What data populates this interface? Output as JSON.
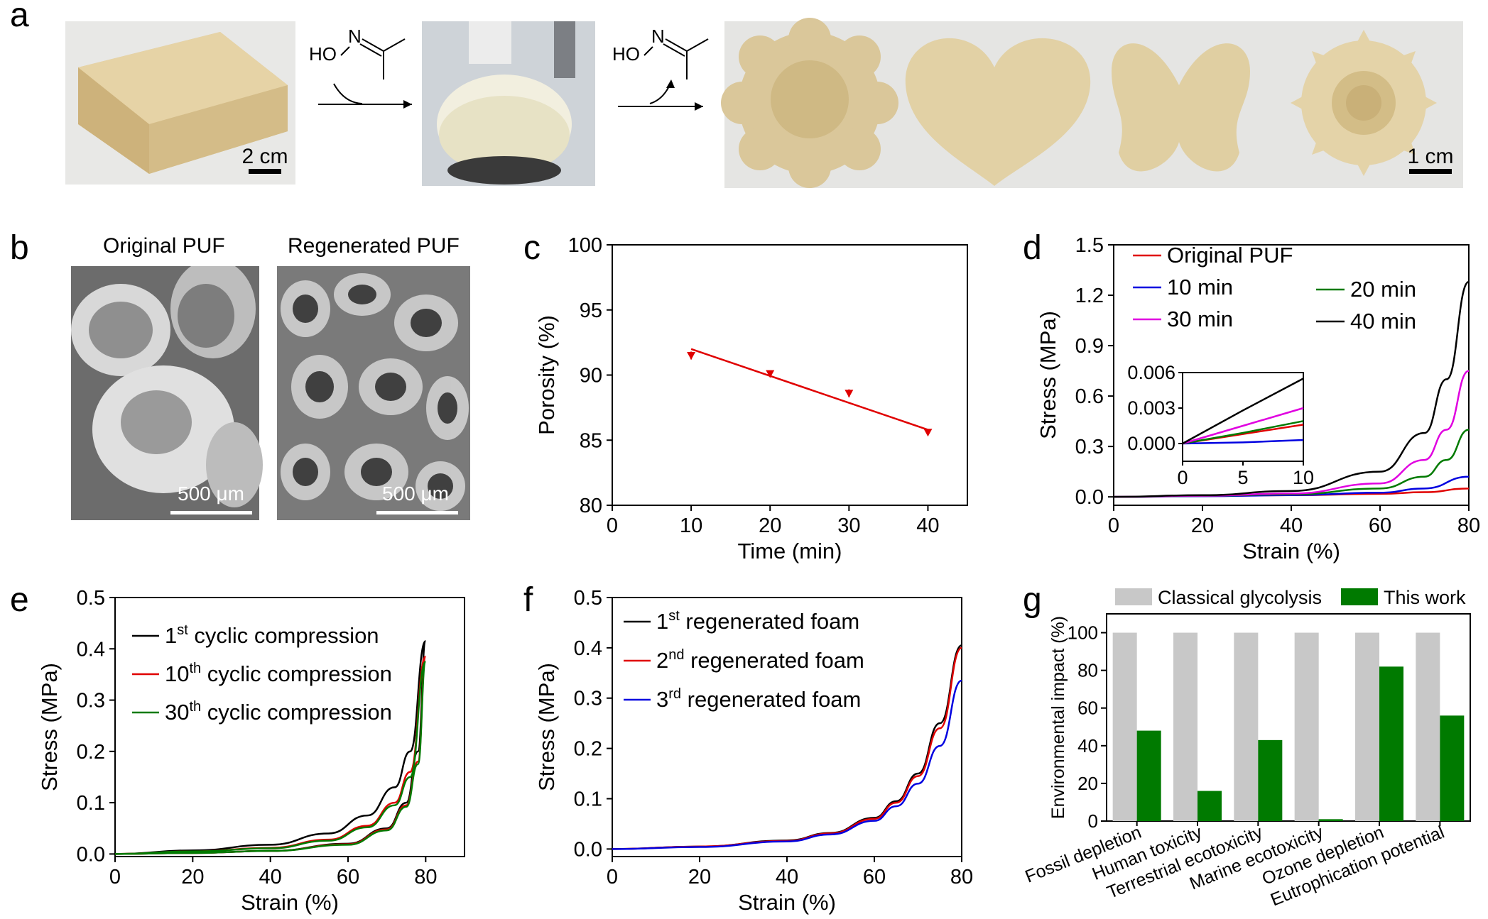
{
  "panel_labels": {
    "a": "a",
    "b": "b",
    "c": "c",
    "d": "d",
    "e": "e",
    "f": "f",
    "g": "g"
  },
  "panel_a": {
    "scale_left": "2 cm",
    "scale_right": "1 cm",
    "reagent_label": "HO",
    "reagent_n": "N",
    "shapes": [
      "flower",
      "heart",
      "butterfly",
      "sunflower"
    ],
    "colors": {
      "foam": "#e3d2a8",
      "foam_dark": "#c9b283",
      "background": "#e6e6e4"
    }
  },
  "panel_b": {
    "left_title": "Original PUF",
    "right_title": "Regenerated PUF",
    "left_scale": "500 μm",
    "right_scale": "500 μm"
  },
  "chart_data": [
    {
      "panel": "c",
      "type": "scatter",
      "xlabel": "Time (min)",
      "ylabel": "Porosity (%)",
      "xlim": [
        0,
        45
      ],
      "ylim": [
        80,
        100
      ],
      "xticks": [
        0,
        10,
        20,
        30,
        40
      ],
      "yticks": [
        80,
        85,
        90,
        95,
        100
      ],
      "points": [
        {
          "x": 10,
          "y": 91.5,
          "err": 0.3
        },
        {
          "x": 20,
          "y": 90.1,
          "err": 0.2
        },
        {
          "x": 30,
          "y": 88.6,
          "err": 0.3
        },
        {
          "x": 40,
          "y": 85.6,
          "err": 0.2
        }
      ],
      "fit_line": {
        "x": [
          10,
          40
        ],
        "y": [
          92.0,
          85.8
        ]
      },
      "color": "#e00000"
    },
    {
      "panel": "d",
      "type": "line",
      "xlabel": "Strain (%)",
      "ylabel": "Stress (MPa)",
      "xlim": [
        0,
        80
      ],
      "ylim": [
        -0.05,
        1.5
      ],
      "xticks": [
        0,
        20,
        40,
        60,
        80
      ],
      "yticks": [
        "0.0",
        "0.3",
        "0.6",
        "0.9",
        "1.2",
        "1.5"
      ],
      "series": [
        {
          "name": "Original PUF",
          "color": "#e00000",
          "x": [
            0,
            20,
            40,
            60,
            70,
            80
          ],
          "y": [
            0,
            0.005,
            0.01,
            0.018,
            0.028,
            0.05
          ]
        },
        {
          "name": "10 min",
          "color": "#0000e0",
          "x": [
            0,
            20,
            40,
            60,
            70,
            80
          ],
          "y": [
            0,
            0.004,
            0.01,
            0.025,
            0.05,
            0.12
          ]
        },
        {
          "name": "20 min",
          "color": "#007a00",
          "x": [
            0,
            20,
            40,
            60,
            70,
            75,
            80
          ],
          "y": [
            0,
            0.006,
            0.015,
            0.05,
            0.12,
            0.22,
            0.4
          ]
        },
        {
          "name": "30 min",
          "color": "#e000e0",
          "x": [
            0,
            20,
            40,
            60,
            70,
            75,
            80
          ],
          "y": [
            0,
            0.007,
            0.02,
            0.08,
            0.22,
            0.4,
            0.75
          ]
        },
        {
          "name": "40 min",
          "color": "#000000",
          "x": [
            0,
            20,
            40,
            60,
            70,
            75,
            80
          ],
          "y": [
            0,
            0.01,
            0.035,
            0.15,
            0.38,
            0.7,
            1.28
          ]
        }
      ],
      "inset": {
        "xlim": [
          0,
          10
        ],
        "ylim": [
          -0.0015,
          0.006
        ],
        "xticks": [
          0,
          5,
          10
        ],
        "yticks": [
          "0.000",
          "0.003",
          "0.006"
        ],
        "series": [
          {
            "name": "Original PUF",
            "color": "#e00000",
            "x": [
              0,
              5,
              10
            ],
            "y": [
              0,
              0.0008,
              0.0016
            ]
          },
          {
            "name": "10 min",
            "color": "#0000e0",
            "x": [
              0,
              5,
              10
            ],
            "y": [
              0,
              0.0001,
              0.0003
            ]
          },
          {
            "name": "20 min",
            "color": "#007a00",
            "x": [
              0,
              5,
              10
            ],
            "y": [
              0,
              0.0009,
              0.0019
            ]
          },
          {
            "name": "30 min",
            "color": "#e000e0",
            "x": [
              0,
              5,
              10
            ],
            "y": [
              0,
              0.0015,
              0.003
            ]
          },
          {
            "name": "40 min",
            "color": "#000000",
            "x": [
              0,
              5,
              10
            ],
            "y": [
              0,
              0.0028,
              0.0055
            ]
          }
        ]
      }
    },
    {
      "panel": "e",
      "type": "line",
      "xlabel": "Strain (%)",
      "ylabel": "Stress (MPa)",
      "xlim": [
        0,
        90
      ],
      "ylim": [
        -0.005,
        0.5
      ],
      "xticks": [
        0,
        20,
        40,
        60,
        80
      ],
      "yticks": [
        "0.0",
        "0.1",
        "0.2",
        "0.3",
        "0.4",
        "0.5"
      ],
      "series": [
        {
          "name": "1st cyclic compression",
          "sup": "st",
          "base": "1",
          "rest": " cyclic compression",
          "color": "#000000",
          "x": [
            0,
            20,
            40,
            55,
            65,
            72,
            76,
            80,
            78,
            75,
            70,
            60,
            40,
            20,
            0
          ],
          "y": [
            0,
            0.007,
            0.018,
            0.04,
            0.075,
            0.13,
            0.2,
            0.415,
            0.2,
            0.1,
            0.05,
            0.02,
            0.006,
            0.002,
            0
          ]
        },
        {
          "name": "10th cyclic compression",
          "sup": "th",
          "base": "10",
          "rest": " cyclic compression",
          "color": "#e00000",
          "x": [
            0,
            20,
            40,
            55,
            65,
            72,
            76,
            80,
            78,
            75,
            70,
            60,
            40,
            20,
            0
          ],
          "y": [
            0,
            0.005,
            0.012,
            0.028,
            0.055,
            0.1,
            0.16,
            0.385,
            0.18,
            0.095,
            0.048,
            0.019,
            0.006,
            0.002,
            0
          ]
        },
        {
          "name": "30th cyclic compression",
          "sup": "th",
          "base": "30",
          "rest": " cyclic compression",
          "color": "#007a00",
          "x": [
            0,
            20,
            40,
            55,
            65,
            72,
            76,
            80,
            78,
            75,
            70,
            60,
            40,
            20,
            0
          ],
          "y": [
            0,
            0.005,
            0.011,
            0.026,
            0.052,
            0.095,
            0.15,
            0.375,
            0.175,
            0.092,
            0.046,
            0.018,
            0.006,
            0.002,
            0
          ]
        }
      ]
    },
    {
      "panel": "f",
      "type": "line",
      "xlabel": "Strain (%)",
      "ylabel": "Stress (MPa)",
      "xlim": [
        0,
        80
      ],
      "ylim": [
        -0.015,
        0.5
      ],
      "xticks": [
        0,
        20,
        40,
        60,
        80
      ],
      "yticks": [
        "0.0",
        "0.1",
        "0.2",
        "0.3",
        "0.4",
        "0.5"
      ],
      "series": [
        {
          "name": "1st regenerated foam",
          "base": "1",
          "sup": "st",
          "rest": " regenerated foam",
          "color": "#000000",
          "x": [
            0,
            20,
            40,
            50,
            60,
            65,
            70,
            75,
            80
          ],
          "y": [
            0,
            0.005,
            0.017,
            0.032,
            0.062,
            0.095,
            0.15,
            0.25,
            0.405
          ]
        },
        {
          "name": "2nd regenerated foam",
          "base": "2",
          "sup": "nd",
          "rest": " regenerated foam",
          "color": "#e00000",
          "x": [
            0,
            20,
            40,
            50,
            60,
            65,
            70,
            75,
            80
          ],
          "y": [
            0,
            0.005,
            0.016,
            0.031,
            0.06,
            0.092,
            0.145,
            0.24,
            0.4
          ]
        },
        {
          "name": "3rd regenerated foam",
          "base": "3",
          "sup": "rd",
          "rest": " regenerated foam",
          "color": "#0000e0",
          "x": [
            0,
            20,
            40,
            50,
            60,
            65,
            70,
            75,
            80
          ],
          "y": [
            0,
            0.004,
            0.015,
            0.029,
            0.056,
            0.085,
            0.13,
            0.205,
            0.335
          ]
        }
      ]
    },
    {
      "panel": "g",
      "type": "bar",
      "ylabel": "Environmental impact (%)",
      "ylim": [
        0,
        110
      ],
      "yticks": [
        0,
        20,
        40,
        60,
        80,
        100
      ],
      "categories": [
        "Fossil depletion",
        "Human toxicity",
        "Terrestrial ecotoxicity",
        "Marine ecotoxicity",
        "Ozone depletion",
        "Eutrophication potential"
      ],
      "series": [
        {
          "name": "Classical glycolysis",
          "color": "#c8c8c8",
          "values": [
            100,
            100,
            100,
            100,
            100,
            100
          ]
        },
        {
          "name": "This work",
          "color": "#007a00",
          "values": [
            48,
            16,
            43,
            1,
            82,
            56
          ]
        }
      ]
    }
  ]
}
